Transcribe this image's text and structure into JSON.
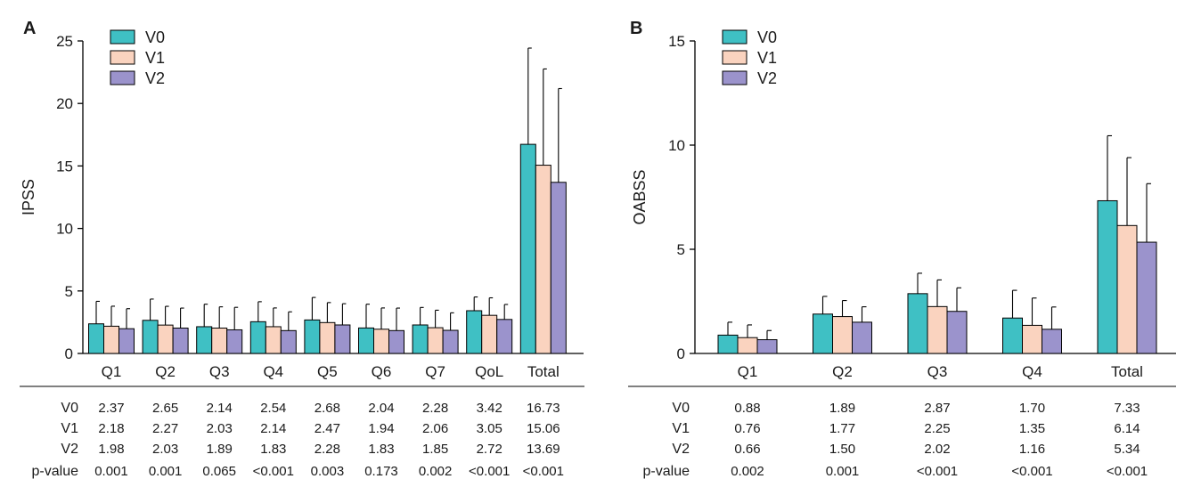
{
  "colors": {
    "V0": "#3fc0c4",
    "V1": "#fad3bf",
    "V2": "#9b93cc"
  },
  "chart_data": [
    {
      "panel": "A",
      "type": "bar",
      "ylabel": "IPSS",
      "ylim": [
        0,
        25
      ],
      "yticks": [
        "0",
        "5",
        "10",
        "15",
        "20",
        "25"
      ],
      "categories": [
        "Q1",
        "Q2",
        "Q3",
        "Q4",
        "Q5",
        "Q6",
        "Q7",
        "QoL",
        "Total"
      ],
      "series": [
        {
          "name": "V0",
          "values": [
            2.37,
            2.65,
            2.14,
            2.54,
            2.68,
            2.04,
            2.28,
            3.42,
            16.73
          ],
          "sd": [
            1.8,
            1.7,
            1.8,
            1.6,
            1.8,
            1.9,
            1.4,
            1.1,
            7.7
          ]
        },
        {
          "name": "V1",
          "values": [
            2.18,
            2.27,
            2.03,
            2.14,
            2.47,
            1.94,
            2.06,
            3.05,
            15.06
          ],
          "sd": [
            1.6,
            1.5,
            1.7,
            1.5,
            1.6,
            1.7,
            1.4,
            1.4,
            7.7
          ]
        },
        {
          "name": "V2",
          "values": [
            1.98,
            2.03,
            1.89,
            1.83,
            2.28,
            1.83,
            1.85,
            2.72,
            13.69
          ],
          "sd": [
            1.6,
            1.6,
            1.8,
            1.5,
            1.7,
            1.8,
            1.4,
            1.2,
            7.5
          ]
        }
      ],
      "table": {
        "row_labels": [
          "V0",
          "V1",
          "V2",
          "p-value"
        ],
        "rows": [
          [
            "2.37",
            "2.65",
            "2.14",
            "2.54",
            "2.68",
            "2.04",
            "2.28",
            "3.42",
            "16.73"
          ],
          [
            "2.18",
            "2.27",
            "2.03",
            "2.14",
            "2.47",
            "1.94",
            "2.06",
            "3.05",
            "15.06"
          ],
          [
            "1.98",
            "2.03",
            "1.89",
            "1.83",
            "2.28",
            "1.83",
            "1.85",
            "2.72",
            "13.69"
          ],
          [
            "0.001",
            "0.001",
            "0.065",
            "<0.001",
            "0.003",
            "0.173",
            "0.002",
            "<0.001",
            "<0.001"
          ]
        ]
      },
      "legend": [
        "V0",
        "V1",
        "V2"
      ]
    },
    {
      "panel": "B",
      "type": "bar",
      "ylabel": "OABSS",
      "ylim": [
        0,
        15
      ],
      "yticks": [
        "0",
        "5",
        "10",
        "15"
      ],
      "categories": [
        "Q1",
        "Q2",
        "Q3",
        "Q4",
        "Total"
      ],
      "series": [
        {
          "name": "V0",
          "values": [
            0.88,
            1.89,
            2.87,
            1.7,
            7.33
          ],
          "sd": [
            0.62,
            0.85,
            0.98,
            1.33,
            3.12
          ]
        },
        {
          "name": "V1",
          "values": [
            0.76,
            1.77,
            2.25,
            1.35,
            6.14
          ],
          "sd": [
            0.61,
            0.77,
            1.28,
            1.31,
            3.26
          ]
        },
        {
          "name": "V2",
          "values": [
            0.66,
            1.5,
            2.02,
            1.16,
            5.34
          ],
          "sd": [
            0.44,
            0.74,
            1.13,
            1.07,
            2.81
          ]
        }
      ],
      "table": {
        "row_labels": [
          "V0",
          "V1",
          "V2",
          "p-value"
        ],
        "rows": [
          [
            "0.88",
            "1.89",
            "2.87",
            "1.70",
            "7.33"
          ],
          [
            "0.76",
            "1.77",
            "2.25",
            "1.35",
            "6.14"
          ],
          [
            "0.66",
            "1.50",
            "2.02",
            "1.16",
            "5.34"
          ],
          [
            "0.002",
            "0.001",
            "<0.001",
            "<0.001",
            "<0.001"
          ]
        ]
      },
      "legend": [
        "V0",
        "V1",
        "V2"
      ]
    }
  ]
}
